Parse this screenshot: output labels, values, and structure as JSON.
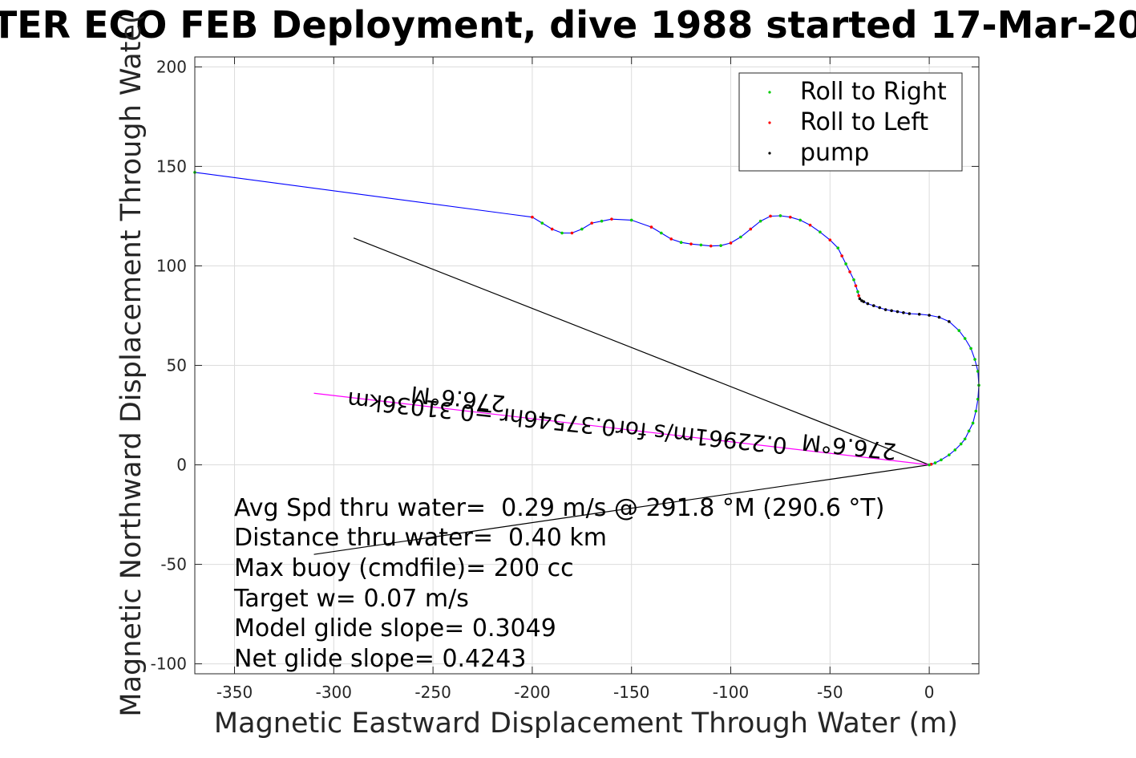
{
  "chart_data": {
    "type": "line",
    "title": "TER ECO FEB Deployment, dive 1988 started 17-Mar-20",
    "xlabel": "Magnetic Eastward Displacement Through Water (m)",
    "ylabel": "Magnetic Northward Displacement Through Wate(",
    "xlim": [
      -370,
      25
    ],
    "ylim": [
      -105,
      205
    ],
    "xticks": [
      -350,
      -300,
      -250,
      -200,
      -150,
      -100,
      -50,
      0
    ],
    "xtick_labels": [
      "-350",
      "-300",
      "-250",
      "-200",
      "-150",
      "-100",
      "-50",
      "0"
    ],
    "yticks": [
      -100,
      -50,
      0,
      50,
      100,
      150,
      200
    ],
    "ytick_labels": [
      "-100",
      "-50",
      "0",
      "50",
      "100",
      "150",
      "200"
    ],
    "grid": true,
    "legend_position": "top-right",
    "legend": [
      {
        "label": "Roll to Right",
        "color": "#00cc00"
      },
      {
        "label": "Roll to Left",
        "color": "#ff0000"
      },
      {
        "label": "pump",
        "color": "#000000"
      }
    ],
    "track": {
      "color": "#0000ff",
      "x": [
        -370,
        -200,
        -195,
        -190,
        -185,
        -180,
        -175,
        -170,
        -165,
        -160,
        -150,
        -140,
        -135,
        -130,
        -125,
        -120,
        -115,
        -110,
        -105,
        -100,
        -95,
        -90,
        -85,
        -80,
        -75,
        -70,
        -65,
        -60,
        -55,
        -50,
        -46,
        -44,
        -42,
        -40,
        -38,
        -37,
        -36,
        -35.5,
        -35,
        -34,
        -33,
        -31,
        -28,
        -25,
        -22,
        -19,
        -16,
        -13,
        -10,
        -5,
        0,
        5,
        10,
        15,
        18,
        21,
        23,
        24.5,
        25,
        24.5,
        23.5,
        22,
        20,
        18,
        16,
        13,
        10,
        6,
        3,
        1,
        0
      ],
      "y": [
        147,
        124.5,
        121.5,
        118.5,
        116.5,
        116.5,
        118.5,
        121.5,
        122.5,
        123.5,
        123.0,
        119.5,
        116.5,
        113.5,
        111.8,
        111.0,
        110.5,
        110.0,
        110.2,
        111.5,
        114.5,
        118.5,
        122.5,
        125.0,
        125.2,
        124.5,
        123.0,
        120.5,
        117.0,
        113.0,
        109.0,
        105.0,
        101.0,
        97.0,
        93.0,
        90.0,
        87.0,
        85.0,
        83.5,
        82.5,
        82.0,
        81.0,
        80.0,
        79.0,
        78.0,
        77.5,
        77.0,
        76.5,
        76.0,
        75.7,
        75.2,
        74.2,
        72.0,
        67.5,
        63.5,
        58.5,
        53.0,
        47.0,
        40.0,
        33.0,
        27.0,
        21.0,
        17.0,
        13.0,
        10.5,
        7.5,
        5.0,
        2.5,
        1.0,
        0.3,
        0
      ]
    },
    "pump_segment_range": [
      38,
      52
    ],
    "segments": [
      {
        "name": "current-line-1",
        "color": "#000000",
        "from": [
          -290,
          114
        ],
        "to": [
          0,
          0
        ]
      },
      {
        "name": "current-line-2",
        "color": "#000000",
        "from": [
          -310,
          -45
        ],
        "to": [
          0,
          0
        ]
      },
      {
        "name": "heading-line",
        "color": "#ff00ff",
        "from": [
          -310,
          36
        ],
        "to": [
          0,
          0
        ]
      }
    ],
    "rotated_labels": [
      {
        "name": "heading-label-1",
        "text": "276.6°M",
        "at": [
          -237,
          37
        ],
        "angle": 6
      },
      {
        "name": "heading-label-2",
        "text": "0.22961m/s for0.37546hr =0.31036km",
        "at": [
          -182,
          25
        ],
        "angle": 6
      },
      {
        "name": "heading-label-3",
        "text": "276.6°M",
        "at": [
          -40,
          13
        ],
        "angle": 6
      }
    ],
    "annotations": [
      "Avg Spd thru water=  0.29 m/s @ 291.8 °M (290.6 °T)",
      "Distance thru water=  0.40 km",
      "Max buoy (cmdfile)= 200 cc",
      "Target w= 0.07 m/s",
      "Model glide slope= 0.3049",
      "Net glide slope= 0.4243"
    ]
  }
}
